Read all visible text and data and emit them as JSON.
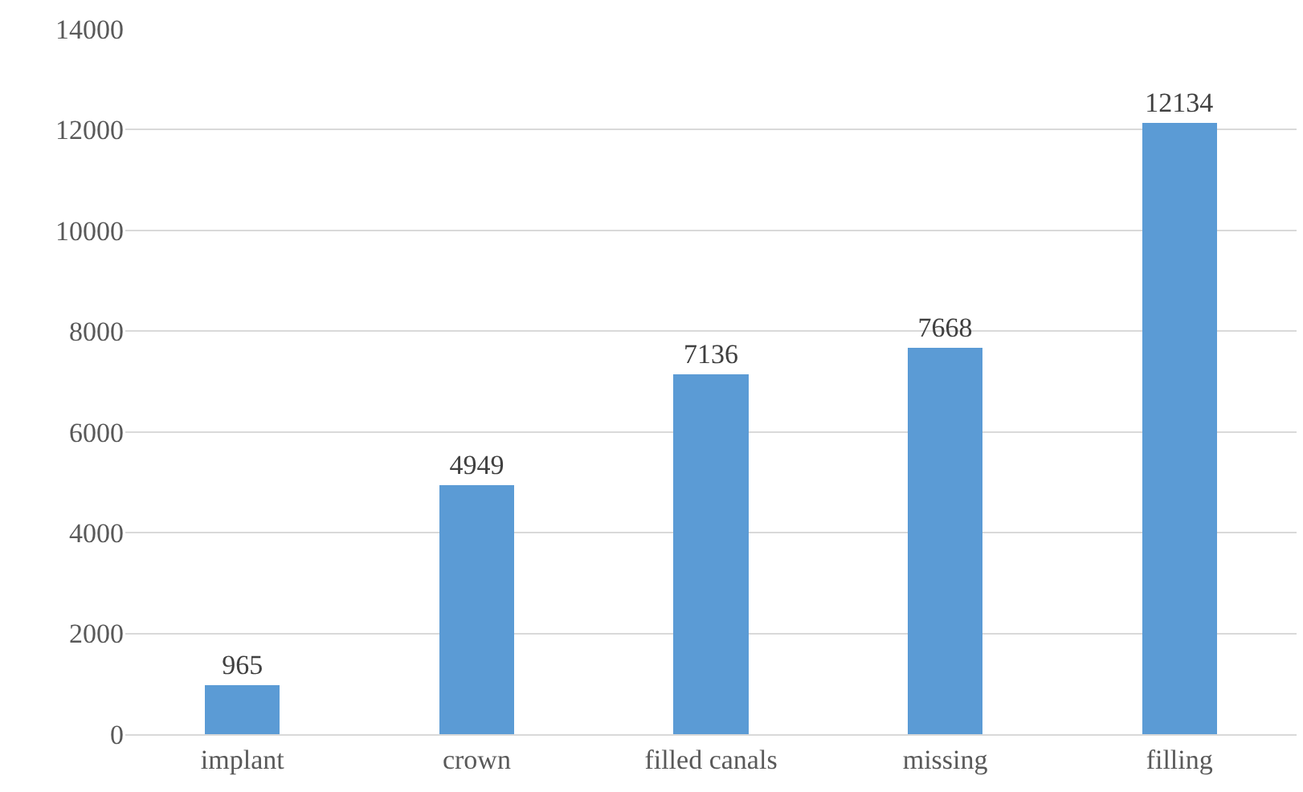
{
  "chart_data": {
    "type": "bar",
    "categories": [
      "implant",
      "crown",
      "filled canals",
      "missing",
      "filling"
    ],
    "values": [
      965,
      4949,
      7136,
      7668,
      12134
    ],
    "color": "#5b9bd5",
    "data_labels": true,
    "ylim": [
      0,
      14000
    ],
    "yticks": [
      0,
      2000,
      4000,
      6000,
      8000,
      10000,
      12000,
      14000
    ],
    "grid": "y",
    "legend": false
  }
}
